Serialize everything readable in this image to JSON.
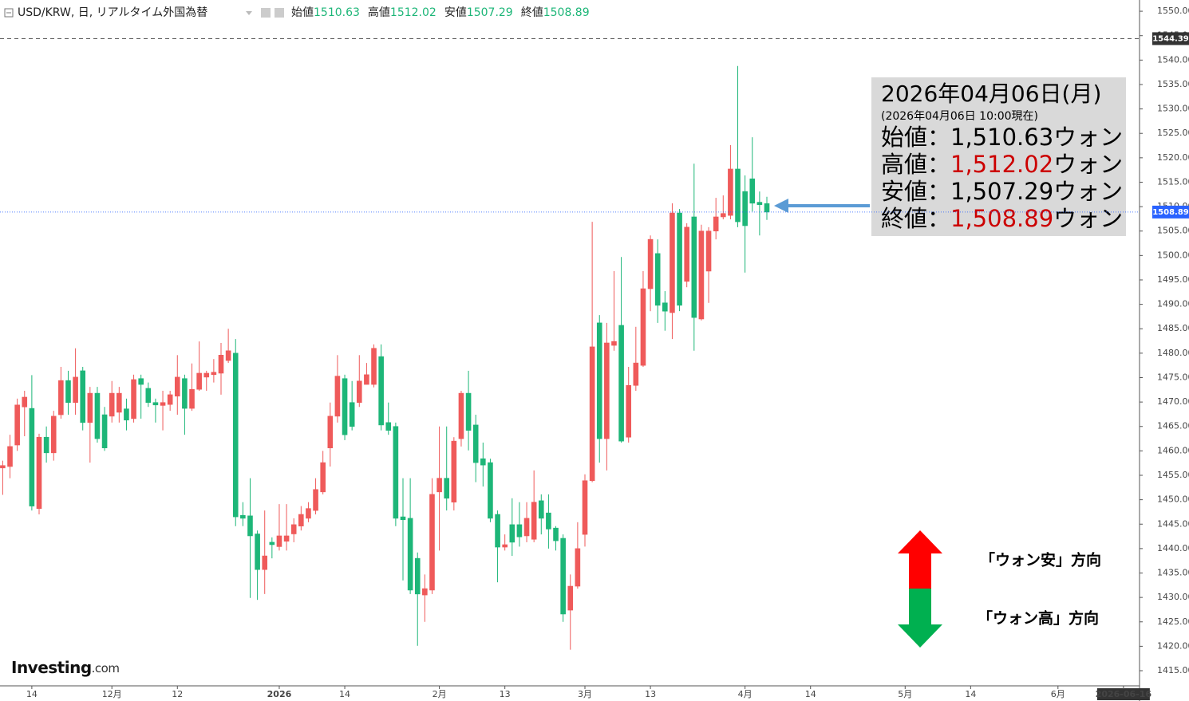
{
  "chart_data": {
    "type": "candlestick",
    "header": {
      "symbol": "USD/KRW, 日, リアルタイム外国為替",
      "ohlc": [
        {
          "label": "始値",
          "value": 1510.63
        },
        {
          "label": "高値",
          "value": 1512.02
        },
        {
          "label": "安値",
          "value": 1507.29
        },
        {
          "label": "終値",
          "value": 1508.89
        }
      ]
    },
    "up_color": "#ef5a5a",
    "down_color": "#1db678",
    "ylim": [
      1411.9,
      1552.3
    ],
    "yticks": [
      {
        "value": 1415,
        "label": "1415.00"
      },
      {
        "value": 1420,
        "label": "1420.00"
      },
      {
        "value": 1425,
        "label": "1425.00"
      },
      {
        "value": 1430,
        "label": "1430.00"
      },
      {
        "value": 1435,
        "label": "1435.00"
      },
      {
        "value": 1440,
        "label": "1440.00"
      },
      {
        "value": 1445,
        "label": "1445.00"
      },
      {
        "value": 1450,
        "label": "1450.00"
      },
      {
        "value": 1455,
        "label": "1455.00"
      },
      {
        "value": 1460,
        "label": "1460.00"
      },
      {
        "value": 1465,
        "label": "1465.00"
      },
      {
        "value": 1470,
        "label": "1470.00"
      },
      {
        "value": 1475,
        "label": "1475.00"
      },
      {
        "value": 1480,
        "label": "1480.00"
      },
      {
        "value": 1485,
        "label": "1485.00"
      },
      {
        "value": 1490,
        "label": "1490.00"
      },
      {
        "value": 1495,
        "label": "1495.00"
      },
      {
        "value": 1500,
        "label": "1500.00"
      },
      {
        "value": 1505,
        "label": "1505.00"
      },
      {
        "value": 1510,
        "label": "1510.00"
      },
      {
        "value": 1515,
        "label": "1515.00"
      },
      {
        "value": 1520,
        "label": "1520.00"
      },
      {
        "value": 1525,
        "label": "1525.00"
      },
      {
        "value": 1530,
        "label": "1530.00"
      },
      {
        "value": 1535,
        "label": "1535.00"
      },
      {
        "value": 1540,
        "label": "1540.00"
      },
      {
        "value": 1545,
        "label": "1545.00"
      },
      {
        "value": 1550,
        "label": "1550.00"
      }
    ],
    "price_lines": [
      {
        "value": 1544.39,
        "style": "dashed",
        "color": "#333333"
      },
      {
        "value": 1508.89,
        "style": "dotted",
        "color": "#2962ff"
      }
    ],
    "categories": [
      null,
      null,
      null,
      null,
      "14",
      null,
      null,
      null,
      null,
      null,
      null,
      null,
      null,
      null,
      null,
      "12月",
      null,
      null,
      null,
      null,
      null,
      null,
      null,
      null,
      "12",
      null,
      null,
      null,
      null,
      null,
      null,
      null,
      null,
      null,
      null,
      null,
      null,
      null,
      "2026",
      null,
      null,
      null,
      null,
      null,
      null,
      null,
      null,
      "14",
      null,
      null,
      null,
      null,
      null,
      null,
      null,
      null,
      null,
      null,
      null,
      null,
      "2月",
      null,
      null,
      null,
      null,
      null,
      null,
      null,
      null,
      "13",
      null,
      null,
      null,
      null,
      null,
      null,
      null,
      null,
      null,
      null,
      "3月",
      null,
      null,
      null,
      null,
      null,
      null,
      null,
      null,
      "13",
      null,
      null,
      null,
      null,
      null,
      null,
      null,
      null,
      null,
      null,
      null,
      null,
      "4月",
      null,
      null,
      null,
      null,
      null,
      null,
      null,
      null,
      "14",
      null,
      null,
      null,
      null,
      null,
      null,
      null,
      null,
      null,
      null,
      null,
      null,
      "5月",
      null,
      null,
      null,
      null,
      null,
      null,
      null,
      null,
      "14",
      null,
      null,
      null,
      null,
      null,
      null,
      null,
      null,
      null,
      null,
      null,
      "6月",
      null,
      null,
      null,
      null,
      null,
      null,
      null,
      null,
      "2026-06-16"
    ],
    "open": [
      1456.5,
      1456.8,
      1461.2,
      1469,
      1468.7,
      1448.2,
      1462.8,
      1459.6,
      1467.4,
      1474.4,
      1469.9,
      1476.4,
      1465.8,
      1471.8,
      1467.4,
      1467.1,
      1467.9,
      1468.6,
      1466.6,
      1474.8,
      1472.8,
      1469.9,
      1469.3,
      1469.5,
      1471.2,
      1474.8,
      1468.7,
      1472.6,
      1475.1,
      1475.6,
      1475.9,
      1478.5,
      1480,
      1446.8,
      1446.7,
      1443,
      1435.7,
      1441.3,
      1440.4,
      1441.5,
      1443,
      1444.6,
      1446.2,
      1447.8,
      1451.6,
      1460.6,
      1467.1,
      1474.8,
      1469.9,
      1469.9,
      1473.6,
      1473.6,
      1479.3,
      1465.8,
      1465,
      1446.5,
      1446.2,
      1438,
      1430.5,
      1431.5,
      1451.6,
      1454.4,
      1449.5,
      1462.5,
      1471.8,
      1465.3,
      1458.4,
      1457.6,
      1447,
      1440.3,
      1444.9,
      1444.9,
      1442.6,
      1441.9,
      1449.8,
      1447.3,
      1444.2,
      1442.1,
      1427.4,
      1432.3,
      1442.9,
      1453.9,
      1486.2,
      1462.5,
      1481.6,
      1485.7,
      1462.8,
      1473.4,
      1477.5,
      1493.2,
      1500.4,
      1490.3,
      1488.3,
      1508.7,
      1494.7,
      1507.9,
      1487,
      1496.8,
      1505,
      1507.9,
      1508.2,
      1517.7,
      1513.1,
      1515.7,
      1510.9,
      1510.63,
      null,
      null,
      null,
      null,
      null,
      null,
      null,
      null,
      null,
      null,
      null,
      null,
      null,
      null,
      null,
      null,
      null,
      null,
      null,
      null,
      null,
      null,
      null,
      null,
      null,
      null,
      null,
      null,
      null,
      null,
      null,
      null,
      null,
      null,
      null,
      null,
      null,
      null,
      null,
      null,
      null,
      null,
      null,
      null,
      null,
      null,
      null,
      null,
      null
    ],
    "high": [
      1458,
      1463.3,
      1470.7,
      1472.3,
      1475.5,
      1463.5,
      1465,
      1468.2,
      1477.2,
      1476.4,
      1481,
      1477.2,
      1473.1,
      1473.1,
      1469,
      1474.3,
      1473.1,
      1470.7,
      1475.6,
      1475.6,
      1474,
      1470.7,
      1472.3,
      1472.3,
      1479.6,
      1475.6,
      1477.9,
      1482.4,
      1476.4,
      1478.8,
      1482.1,
      1485,
      1482.9,
      1449.5,
      1454.4,
      1443.7,
      1447.8,
      1442.3,
      1449.1,
      1449.1,
      1446.2,
      1448.7,
      1449.5,
      1454.4,
      1460,
      1469.9,
      1479.6,
      1475.6,
      1474.3,
      1479.6,
      1478,
      1481.8,
      1481.8,
      1469.9,
      1465.8,
      1454.4,
      1454.4,
      1439.2,
      1434.7,
      1454.4,
      1465,
      1465,
      1462.8,
      1472.3,
      1476.4,
      1467.4,
      1461.7,
      1458.4,
      1447.8,
      1442.9,
      1450.3,
      1449.5,
      1449.5,
      1456,
      1451.1,
      1451.1,
      1444.6,
      1442.9,
      1434.7,
      1445.4,
      1455.2,
      1506.9,
      1487.8,
      1486.2,
      1496.8,
      1499.7,
      1477.2,
      1485.4,
      1496.8,
      1504.1,
      1503.3,
      1492.7,
      1510.7,
      1509.5,
      1506.6,
      1518.8,
      1506.3,
      1505.8,
      1511.8,
      1512.3,
      1522.6,
      1538.8,
      1516.4,
      1524.2,
      1513.1,
      1512.02,
      null,
      null,
      null,
      null,
      null,
      null,
      null,
      null,
      null,
      null,
      null,
      null,
      null,
      null,
      null,
      null,
      null,
      null,
      null,
      null,
      null,
      null,
      null,
      null,
      null,
      null,
      null,
      null,
      null,
      null,
      null,
      null,
      null,
      null,
      null,
      null,
      null,
      null,
      null,
      null,
      null,
      null,
      null,
      null,
      null,
      null,
      null,
      null,
      null
    ],
    "low": [
      1451,
      1454.4,
      1460,
      1463,
      1447.8,
      1447,
      1457.6,
      1458,
      1466.6,
      1467.4,
      1467.4,
      1464.2,
      1457.6,
      1461.7,
      1460,
      1465.8,
      1465.8,
      1464.2,
      1465.8,
      1466.6,
      1469,
      1465.8,
      1464.2,
      1468.2,
      1467.4,
      1463.3,
      1468.2,
      1472.3,
      1472.3,
      1474,
      1471.5,
      1478,
      1444.6,
      1444.6,
      1429.9,
      1429.5,
      1430.7,
      1438,
      1439.6,
      1439.6,
      1441.3,
      1443.7,
      1445.4,
      1447,
      1451.1,
      1456.8,
      1465.8,
      1462.2,
      1464.2,
      1469,
      1473.6,
      1473,
      1464.2,
      1463.3,
      1444.6,
      1433.5,
      1430.7,
      1420.1,
      1425,
      1430.7,
      1439.6,
      1447.8,
      1447.8,
      1460.9,
      1460.1,
      1453.6,
      1452.7,
      1445.4,
      1433.1,
      1439.6,
      1438.5,
      1440.4,
      1441.3,
      1441.3,
      1442.9,
      1440,
      1439.6,
      1425,
      1419.3,
      1431.8,
      1440.4,
      1453.6,
      1457.6,
      1456,
      1480.5,
      1461.7,
      1461.7,
      1472.3,
      1477.2,
      1488.6,
      1486.2,
      1484.6,
      1482.9,
      1488.6,
      1493.5,
      1480.5,
      1486.7,
      1490.3,
      1503.3,
      1507.4,
      1507.4,
      1505.8,
      1496.5,
      1509,
      1504.1,
      1507.29,
      null,
      null,
      null,
      null,
      null,
      null,
      null,
      null,
      null,
      null,
      null,
      null,
      null,
      null,
      null,
      null,
      null,
      null,
      null,
      null,
      null,
      null,
      null,
      null,
      null,
      null,
      null,
      null,
      null,
      null,
      null,
      null,
      null,
      null,
      null,
      null,
      null,
      null,
      null,
      null,
      null,
      null,
      null,
      null,
      null,
      null,
      null,
      null,
      null
    ],
    "close": [
      1457,
      1460.9,
      1469.4,
      1471,
      1448.7,
      1462.8,
      1459.6,
      1467.1,
      1474.4,
      1469.9,
      1475.1,
      1465.8,
      1471.8,
      1462.5,
      1460.6,
      1471.8,
      1471.8,
      1466.3,
      1474.6,
      1473.6,
      1469.9,
      1469.4,
      1469.9,
      1471.5,
      1475.1,
      1468.7,
      1472.6,
      1475.9,
      1475.9,
      1476.1,
      1479.6,
      1480.5,
      1446.5,
      1446.2,
      1442.6,
      1435.7,
      1438.5,
      1440.8,
      1442.6,
      1442.6,
      1444.9,
      1447,
      1448.2,
      1452.1,
      1457.6,
      1467.1,
      1475.3,
      1463.3,
      1465,
      1474.3,
      1475.6,
      1481,
      1465.3,
      1464.2,
      1446.2,
      1445.9,
      1431.5,
      1430.7,
      1431.8,
      1451.1,
      1454.4,
      1450.3,
      1462,
      1471.8,
      1464.2,
      1457.6,
      1457.1,
      1446.2,
      1440.3,
      1440.8,
      1441.3,
      1442.4,
      1446.2,
      1449.5,
      1446.2,
      1444,
      1441.6,
      1426.6,
      1432.3,
      1440,
      1453.9,
      1481.3,
      1462.5,
      1482.1,
      1482.4,
      1462,
      1473.4,
      1478,
      1493.2,
      1503.3,
      1489.8,
      1488.6,
      1508.7,
      1489.8,
      1505.8,
      1487.3,
      1505,
      1505,
      1507.9,
      1508.6,
      1517.7,
      1506.9,
      1506.1,
      1510.7,
      1510.4,
      1508.89,
      null,
      null,
      null,
      null,
      null,
      null,
      null,
      null,
      null,
      null,
      null,
      null,
      null,
      null,
      null,
      null,
      null,
      null,
      null,
      null,
      null,
      null,
      null,
      null,
      null,
      null,
      null,
      null,
      null,
      null,
      null,
      null,
      null,
      null,
      null,
      null,
      null,
      null,
      null,
      null,
      null,
      null,
      null,
      null,
      null,
      null,
      null,
      null,
      null
    ],
    "annotation": {
      "date": "2026年04月06日(月)",
      "asof": "(2026年04月06日 10:00現在)",
      "rows": [
        {
          "label": "始値：",
          "value": "1,510.63",
          "unit": "ウォン",
          "color": "#000000"
        },
        {
          "label": "高値：",
          "value": "1,512.02",
          "unit": "ウォン",
          "color": "#cc0000"
        },
        {
          "label": "安値：",
          "value": "1,507.29",
          "unit": "ウォン",
          "color": "#000000"
        },
        {
          "label": "終値：",
          "value": "1,508.89",
          "unit": "ウォン",
          "color": "#cc0000"
        }
      ]
    },
    "direction_labels": {
      "up": "「ウォン安」方向",
      "down": "「ウォン高」方向"
    },
    "logo": {
      "name": "Investing",
      "suffix": ".com"
    }
  }
}
